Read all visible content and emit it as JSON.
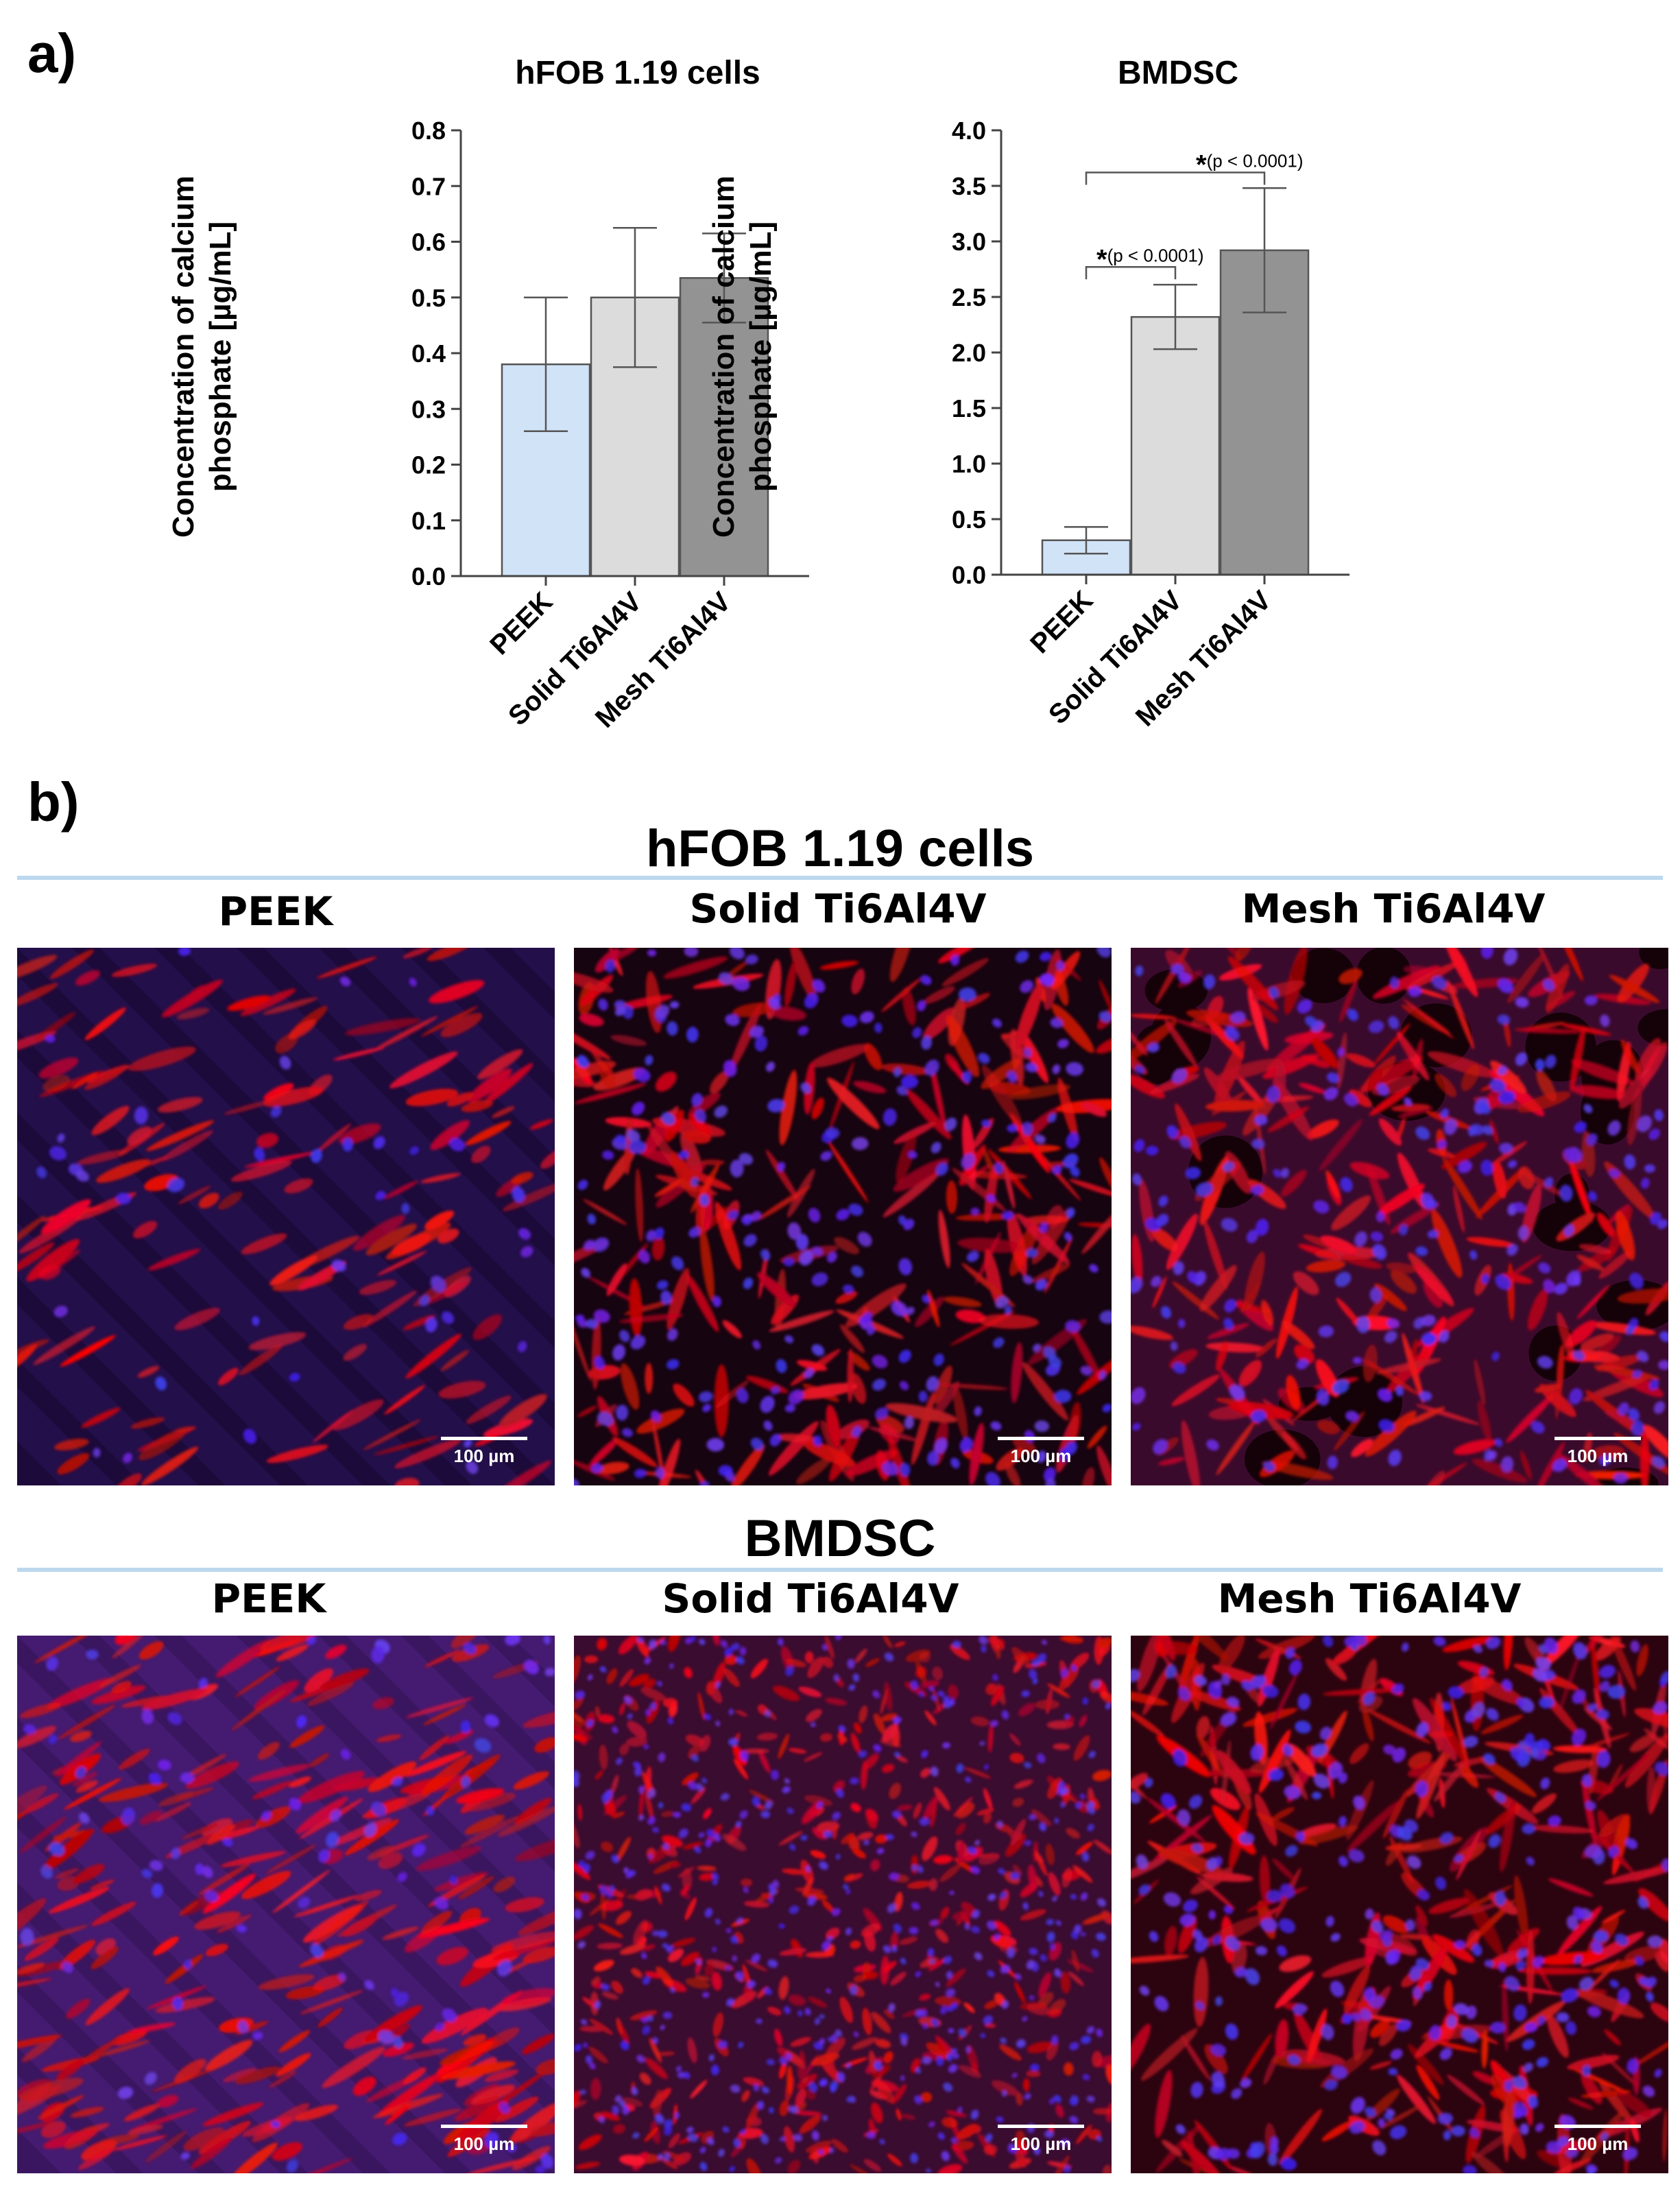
{
  "panel_a_label": "a)",
  "panel_b_label": "b)",
  "chart_data": [
    {
      "type": "bar",
      "title": "hFOB 1.19 cells",
      "ylabel": "Concentration of calcium phosphate [µg/mL]",
      "ylabel_lines": [
        "Concentration of calcium",
        "phosphate [µg/mL]"
      ],
      "categories": [
        "PEEK",
        "Solid Ti6Al4V",
        "Mesh Ti6Al4V"
      ],
      "values": [
        0.38,
        0.5,
        0.535
      ],
      "errors": [
        0.12,
        0.125,
        0.08
      ],
      "colors": [
        "#d1e3f7",
        "#dcdcdc",
        "#939393"
      ],
      "ylim": [
        0,
        0.8
      ],
      "yticks": [
        "0.0",
        "0.1",
        "0.2",
        "0.3",
        "0.4",
        "0.5",
        "0.6",
        "0.7",
        "0.8"
      ],
      "annotations": []
    },
    {
      "type": "bar",
      "title": "BMDSC",
      "ylabel": "Concentration of calcium phosphate [µg/mL]",
      "ylabel_lines": [
        "Concentration of calcium",
        "phosphate [µg/mL]"
      ],
      "categories": [
        "PEEK",
        "Solid Ti6Al4V",
        "Mesh Ti6Al4V"
      ],
      "values": [
        0.31,
        2.32,
        2.92
      ],
      "errors": [
        0.12,
        0.29,
        0.56
      ],
      "colors": [
        "#d1e3f7",
        "#dcdcdc",
        "#939393"
      ],
      "ylim": [
        0,
        4.0
      ],
      "yticks": [
        "0.0",
        "0.5",
        "1.0",
        "1.5",
        "2.0",
        "2.5",
        "3.0",
        "3.5",
        "4.0"
      ],
      "annotations": [
        {
          "from": 0,
          "to": 2,
          "y": 3.62,
          "star": "*",
          "text": "(p < 0.0001)"
        },
        {
          "from": 0,
          "to": 1,
          "y": 2.77,
          "star": "*",
          "text": "(p < 0.0001)"
        }
      ]
    }
  ],
  "panel_b": {
    "groups": [
      {
        "title": "hFOB 1.19 cells",
        "columns": [
          "PEEK",
          "Solid Ti6Al4V",
          "Mesh Ti6Al4V"
        ],
        "scale_bars": [
          "100 µm",
          "100 µm",
          "100 µm"
        ]
      },
      {
        "title": "BMDSC",
        "columns": [
          "PEEK",
          "Solid Ti6Al4V",
          "Mesh Ti6Al4V"
        ],
        "scale_bars": [
          "100 µm",
          "100 µm",
          "100 µm"
        ]
      }
    ]
  }
}
